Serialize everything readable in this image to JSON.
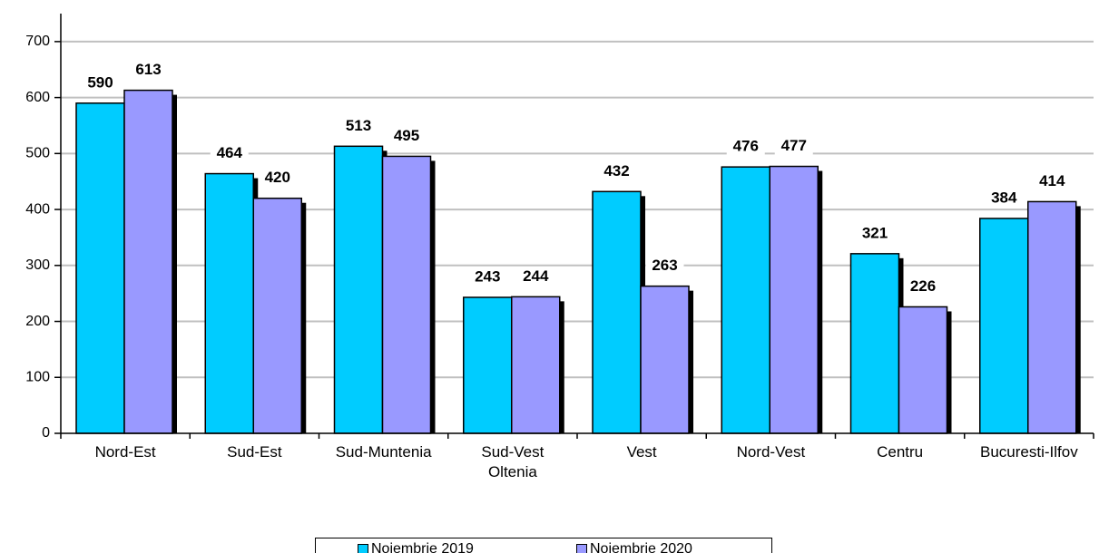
{
  "chart_data": {
    "type": "bar",
    "categories": [
      "Nord-Est",
      "Sud-Est",
      "Sud-Muntenia",
      "Sud-Vest\nOltenia",
      "Vest",
      "Nord-Vest",
      "Centru",
      "Bucuresti-Ilfov"
    ],
    "series": [
      {
        "name": "Noiembrie 2019",
        "color": "#00ccff",
        "label_color": "#3366ee",
        "values": [
          590,
          464,
          513,
          243,
          432,
          476,
          321,
          384
        ]
      },
      {
        "name": "Noiembrie 2020",
        "color": "#9999ff",
        "label_color": "#9999ff",
        "values": [
          613,
          420,
          495,
          244,
          263,
          477,
          226,
          414
        ]
      }
    ],
    "ylim": [
      0,
      750
    ],
    "yticks": [
      0,
      100,
      200,
      300,
      400,
      500,
      600,
      700
    ],
    "grid": true
  }
}
